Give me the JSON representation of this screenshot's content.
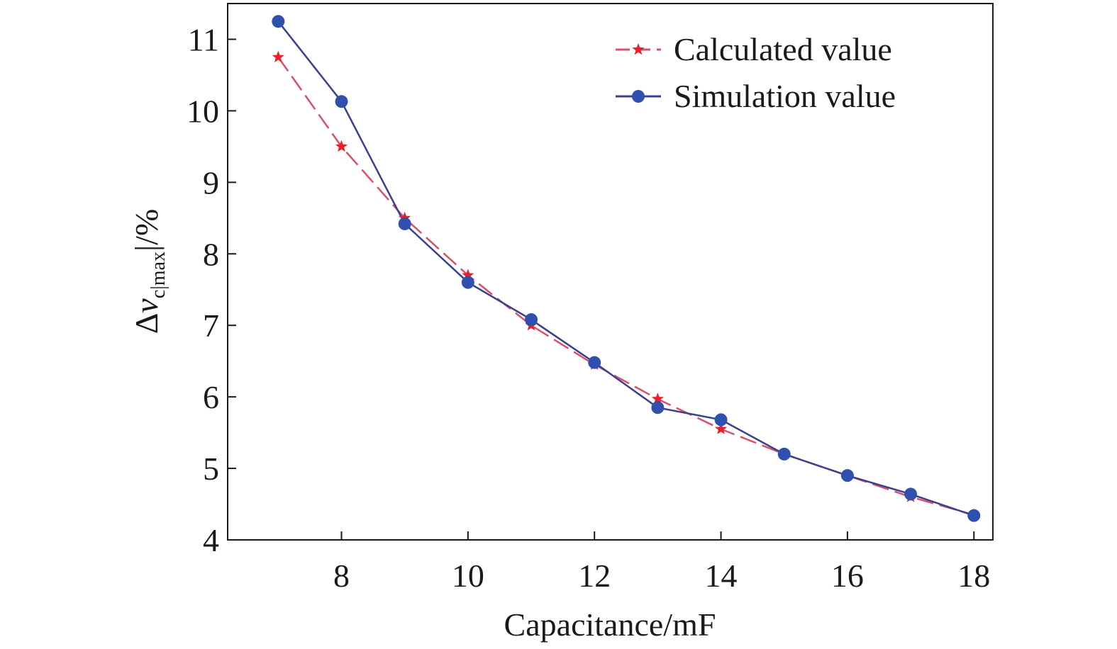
{
  "chart_data": {
    "type": "line",
    "xlabel": "Capacitance/mF",
    "ylabel": {
      "delta": "Δ",
      "var": "v",
      "sub": "c|max",
      "bar_open": "|",
      "bar_close": "|",
      "unit": "/%"
    },
    "xlim": [
      6.2,
      18.3
    ],
    "ylim": [
      4,
      11.5
    ],
    "xticks": [
      8,
      10,
      12,
      14,
      16,
      18
    ],
    "yticks": [
      4,
      5,
      6,
      7,
      8,
      9,
      10,
      11
    ],
    "legend_position": "top-right",
    "grid": false,
    "series": [
      {
        "name": "Calculated value",
        "style": "dashed",
        "marker": "star",
        "line_color": "#d9506a",
        "marker_color": "#e8202a",
        "x": [
          7,
          8,
          9,
          10,
          11,
          12,
          13,
          14,
          15,
          16,
          17,
          18
        ],
        "y": [
          10.75,
          9.5,
          8.5,
          7.7,
          7.0,
          6.45,
          5.97,
          5.55,
          5.2,
          4.9,
          4.6,
          4.35
        ]
      },
      {
        "name": "Simulation value",
        "style": "solid",
        "marker": "circle",
        "line_color": "#3a3f8f",
        "marker_color": "#3050b0",
        "x": [
          7,
          8,
          9,
          10,
          11,
          12,
          13,
          14,
          15,
          16,
          17,
          18
        ],
        "y": [
          11.25,
          10.13,
          8.42,
          7.6,
          7.08,
          6.48,
          5.85,
          5.68,
          5.2,
          4.9,
          4.64,
          4.34
        ]
      }
    ]
  }
}
